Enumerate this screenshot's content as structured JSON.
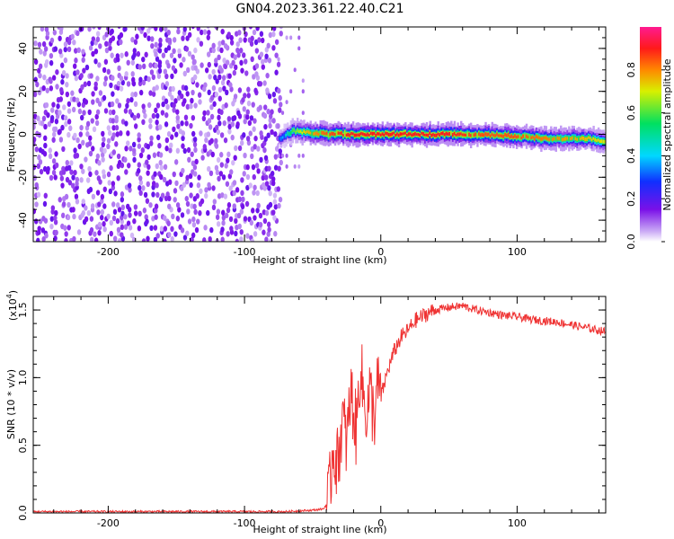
{
  "title": "GN04.2023.361.22.40.C21",
  "chart_data": [
    {
      "type": "heatmap",
      "xlabel": "Height of straight line (km)",
      "ylabel": "Frequency (Hz)",
      "xlim": [
        -255,
        165
      ],
      "ylim": [
        -50,
        50
      ],
      "xticks": [
        -200,
        -100,
        0,
        100
      ],
      "yticks": [
        -40,
        -20,
        0,
        20,
        40
      ],
      "colorbar": {
        "label": "Normalized spectral amplitude",
        "range": [
          0,
          1
        ],
        "ticks": [
          "0.0",
          "0.2",
          "0.4",
          "0.6",
          "0.8"
        ],
        "colormap": "rainbow (purple-blue-cyan-green-yellow-orange-red-magenta)"
      },
      "noise_region": {
        "x_range": [
          -255,
          -75
        ],
        "frequency_range": [
          -50,
          50
        ],
        "amplitude": "low (0.0-0.2), speckled"
      },
      "signal_track": {
        "x": [
          -75,
          -65,
          -55,
          -40,
          -25,
          -10,
          0,
          25,
          50,
          75,
          100,
          125,
          150,
          165
        ],
        "frequency_hz": [
          -2,
          1.5,
          1,
          0,
          0,
          0,
          0,
          0,
          0,
          0,
          -1,
          -2,
          -2,
          -3
        ],
        "peak_amplitude": [
          0.3,
          0.6,
          0.75,
          0.85,
          0.9,
          0.9,
          0.9,
          0.9,
          0.9,
          0.85,
          0.85,
          0.8,
          0.75,
          0.7
        ]
      }
    },
    {
      "type": "line",
      "xlabel": "Height of straight line (km)",
      "ylabel": "SNR (10 * v/v)",
      "y_scale_label": "(x10",
      "y_scale_exponent": "4",
      "xlim": [
        -255,
        165
      ],
      "ylim": [
        0,
        1.6
      ],
      "xticks": [
        -200,
        -100,
        0,
        100
      ],
      "yticks": [
        "0.0",
        "0.5",
        "1.0",
        "1.5"
      ],
      "series": [
        {
          "color": "#ef3333",
          "x": [
            -255,
            -220,
            -180,
            -140,
            -100,
            -70,
            -50,
            -42,
            -38,
            -35,
            -32,
            -28,
            -25,
            -22,
            -18,
            -15,
            -12,
            -10,
            -8,
            -5,
            -2,
            0,
            5,
            10,
            15,
            20,
            25,
            30,
            35,
            40,
            50,
            60,
            70,
            80,
            90,
            100,
            110,
            120,
            130,
            140,
            150,
            165
          ],
          "y": [
            0.01,
            0.01,
            0.01,
            0.01,
            0.01,
            0.01,
            0.02,
            0.03,
            0.1,
            0.5,
            0.35,
            0.7,
            0.5,
            0.9,
            0.6,
            1.1,
            0.8,
            0.75,
            0.9,
            0.7,
            0.95,
            0.85,
            1.05,
            1.2,
            1.3,
            1.35,
            1.42,
            1.45,
            1.48,
            1.5,
            1.52,
            1.53,
            1.5,
            1.48,
            1.46,
            1.45,
            1.43,
            1.42,
            1.41,
            1.39,
            1.37,
            1.34
          ]
        }
      ]
    }
  ]
}
